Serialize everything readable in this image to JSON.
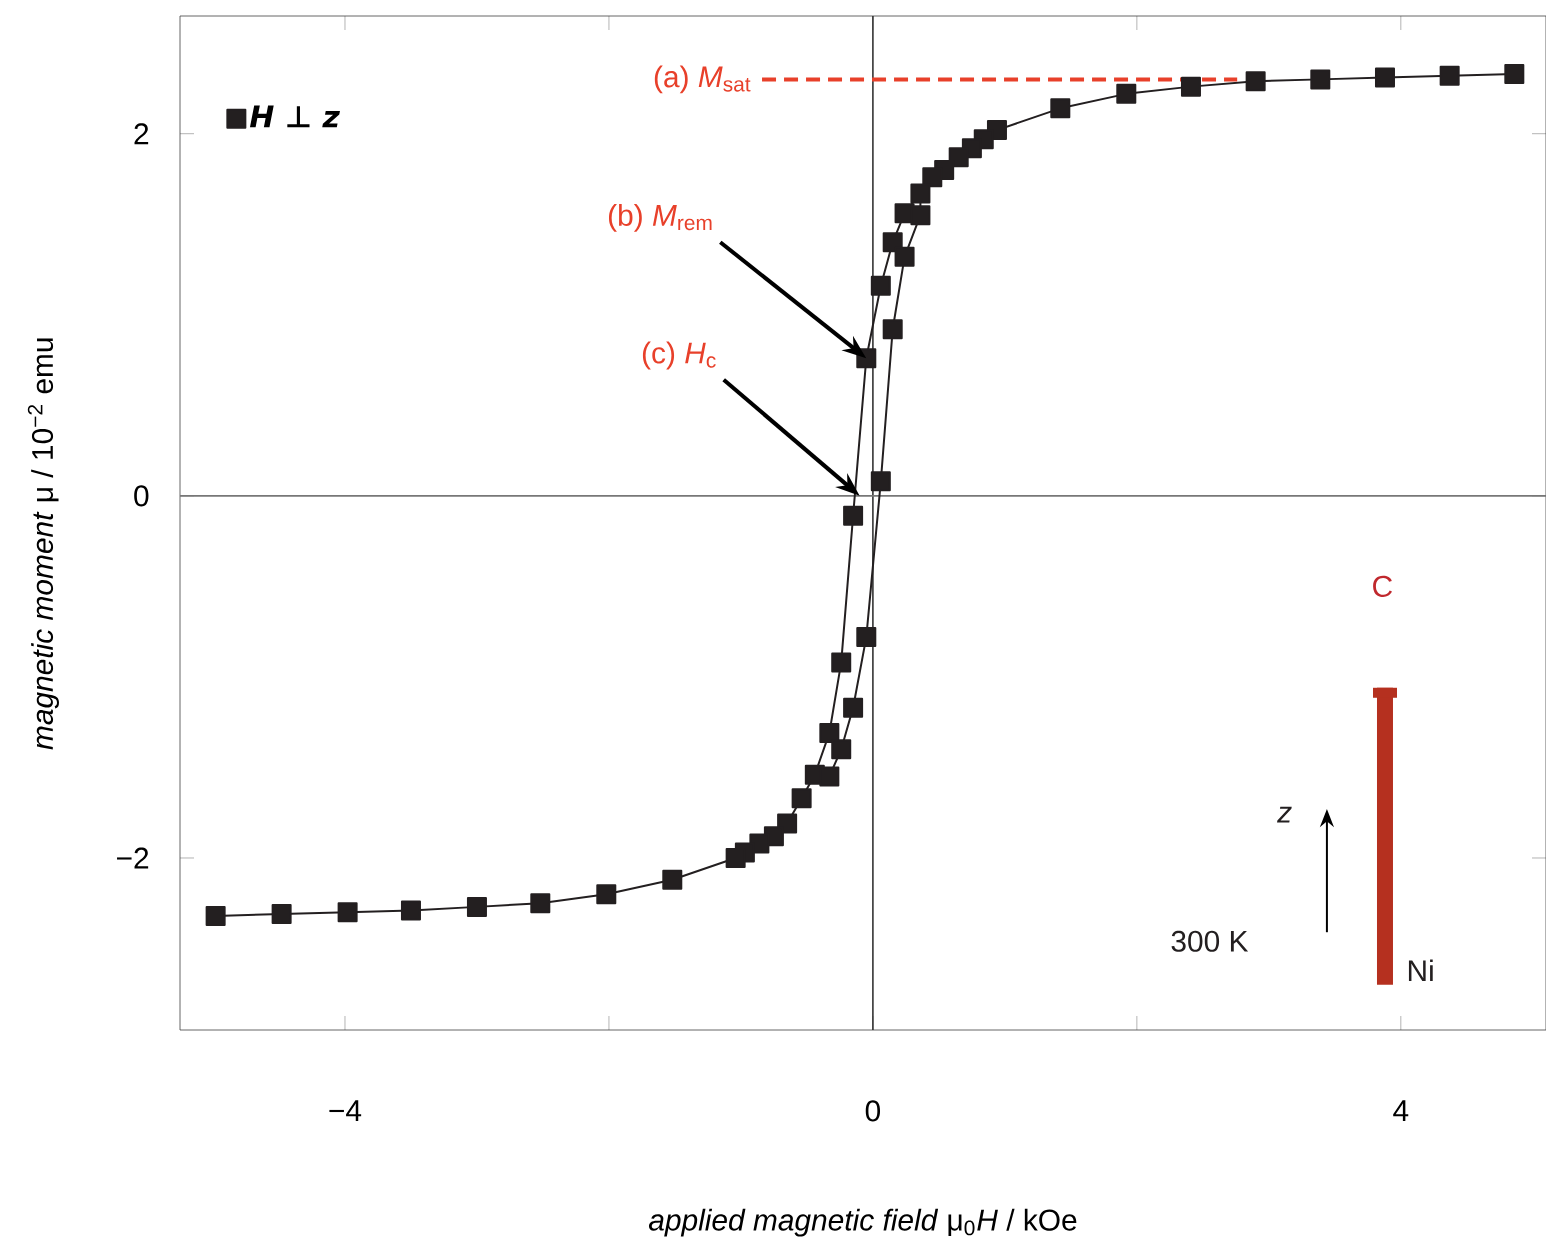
{
  "chart_data": {
    "type": "line",
    "xlabel": "*applied magnetic field* μ$_{0}$*H* /  kOe",
    "ylabel": "*magnetic moment* μ / 10$^{−2}$ emu",
    "xlim": [
      -5.25,
      5.1
    ],
    "ylim": [
      -2.95,
      2.65
    ],
    "xticks": [
      {
        "value": -4,
        "label": "−4"
      },
      {
        "value": -2,
        "label": null
      },
      0,
      {
        "value": 2,
        "label": null
      },
      4
    ],
    "yticks": [
      {
        "value": -2,
        "label": "−2"
      },
      0,
      2
    ],
    "grid": false,
    "legend": "top left",
    "marker": "square",
    "line_style": "solid",
    "series": [
      {
        "name": "H ⊥ z",
        "color": "#231f20",
        "x": [
          4.86,
          4.37,
          3.88,
          3.39,
          2.9,
          2.41,
          1.92,
          1.42,
          0.94,
          0.84,
          0.75,
          0.65,
          0.54,
          0.45,
          0.24,
          0.15,
          0.06,
          -0.05,
          -0.15,
          -0.24,
          -0.33,
          -0.44,
          -0.54,
          -0.65,
          -0.75,
          -0.86,
          -0.97,
          -1.04,
          -1.52,
          -2.02,
          -2.52,
          -3.0,
          -3.5,
          -3.98,
          -4.48,
          -4.98
        ],
        "values": [
          2.33,
          2.32,
          2.31,
          2.3,
          2.29,
          2.26,
          2.22,
          2.14,
          2.02,
          1.97,
          1.92,
          1.87,
          1.8,
          1.76,
          1.56,
          1.4,
          1.16,
          0.76,
          -0.11,
          -0.92,
          -1.31,
          -1.54,
          -1.67,
          -1.81,
          -1.88,
          -1.92,
          -1.97,
          -2.0,
          -2.12,
          -2.2,
          -2.25,
          -2.27,
          -2.29,
          -2.3,
          -2.31,
          -2.32
        ]
      },
      {
        "color": "#231f20",
        "x": [
          -0.33,
          -0.24,
          -0.15,
          -0.05,
          0.06,
          0.15,
          0.24,
          0.36,
          0.36
        ],
        "values": [
          -1.55,
          -1.4,
          -1.17,
          -0.78,
          0.08,
          0.92,
          1.32,
          1.55,
          1.67
        ]
      },
      {
        "type": "line",
        "color": "#e8402a",
        "line_style": "dashed",
        "marker": "none",
        "x": [
          -0.84,
          2.76
        ],
        "values": [
          2.3,
          2.3
        ]
      }
    ],
    "ref_lines": [
      {
        "axis": "x",
        "value": 0,
        "color": "#333333"
      },
      {
        "axis": "y",
        "value": 0,
        "color": "#777777"
      }
    ],
    "annotations": [
      {
        "text": "(a) *M*$_{sat}$",
        "x": -0.84,
        "y": 2.3
      },
      {
        "text": "(b) *M*$_{rem}$",
        "x": -0.05,
        "y": 0.76
      },
      {
        "text": "(c) *H*$_{c}$",
        "x": -0.1,
        "y": 0
      },
      "C",
      "*z*",
      "300 K",
      "Ni"
    ]
  }
}
